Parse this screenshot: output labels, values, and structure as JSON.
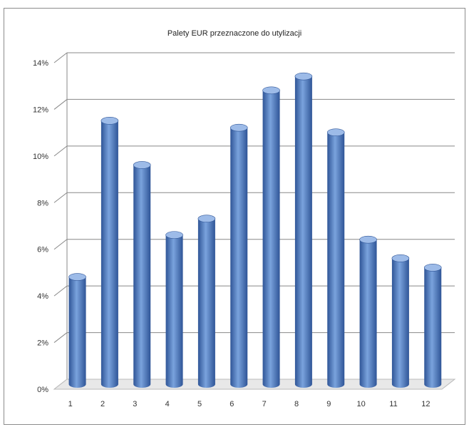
{
  "chart_data": {
    "type": "bar",
    "title": "Palety EUR przeznaczone do utylizacji",
    "xlabel": "",
    "ylabel": "",
    "categories": [
      "1",
      "2",
      "3",
      "4",
      "5",
      "6",
      "7",
      "8",
      "9",
      "10",
      "11",
      "12"
    ],
    "values": [
      4.6,
      11.3,
      9.4,
      6.4,
      7.1,
      11.0,
      12.6,
      13.2,
      10.8,
      6.2,
      5.4,
      5.0
    ],
    "ylim": [
      0,
      14
    ],
    "yticks": [
      0,
      2,
      4,
      6,
      8,
      10,
      12,
      14
    ],
    "ytick_labels": [
      "0%",
      "2%",
      "4%",
      "6%",
      "8%",
      "10%",
      "12%",
      "14%"
    ],
    "grid": true,
    "legend": "none",
    "colors": {
      "bar_front": "#4f7ec5",
      "bar_light": "#7aa3dd",
      "bar_dark": "#2f5597",
      "bar_top": "#9dbbe8",
      "gridline": "#888888",
      "floor": "#e8e8e8"
    }
  }
}
